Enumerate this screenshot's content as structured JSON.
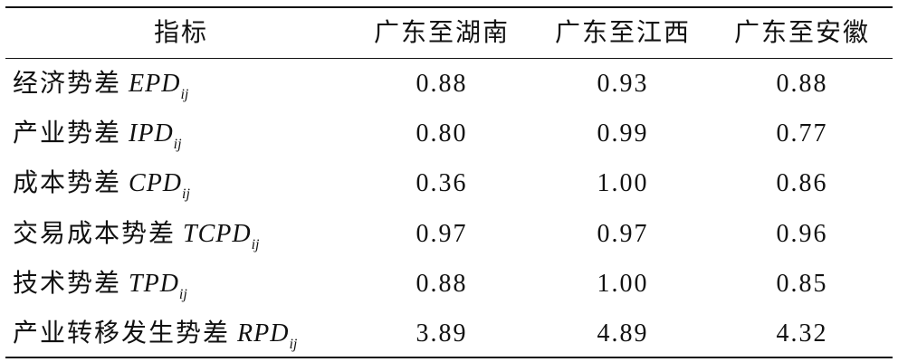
{
  "table": {
    "header": [
      "指标",
      "广东至湖南",
      "广东至江西",
      "广东至安徽"
    ],
    "rows": [
      {
        "name": "经济势差",
        "symbol": "EPD",
        "subscript": "ij",
        "values": [
          "0.88",
          "0.93",
          "0.88"
        ]
      },
      {
        "name": "产业势差",
        "symbol": "IPD",
        "subscript": "ij",
        "values": [
          "0.80",
          "0.99",
          "0.77"
        ]
      },
      {
        "name": "成本势差",
        "symbol": "CPD",
        "subscript": "ij",
        "values": [
          "0.36",
          "1.00",
          "0.86"
        ]
      },
      {
        "name": "交易成本势差",
        "symbol": "TCPD",
        "subscript": "ij",
        "values": [
          "0.97",
          "0.97",
          "0.96"
        ]
      },
      {
        "name": "技术势差",
        "symbol": "TPD",
        "subscript": "ij",
        "values": [
          "0.88",
          "1.00",
          "0.85"
        ]
      },
      {
        "name": "产业转移发生势差",
        "symbol": "RPD",
        "subscript": "ij",
        "values": [
          "3.89",
          "4.89",
          "4.32"
        ]
      }
    ]
  }
}
